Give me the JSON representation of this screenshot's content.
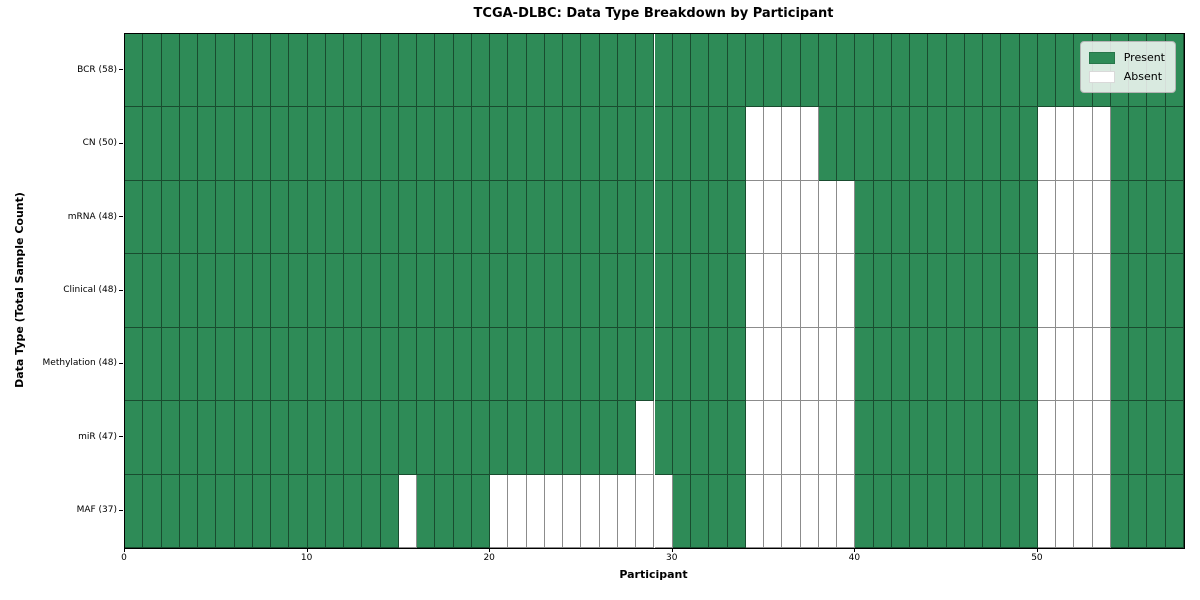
{
  "figure": {
    "title": "TCGA-DLBC: Data Type Breakdown by Participant",
    "xlabel": "Participant",
    "ylabel": "Data Type (Total Sample Count)"
  },
  "legend": {
    "items": [
      {
        "label": "Present",
        "color": "#2e8b57"
      },
      {
        "label": "Absent",
        "color": "#ffffff"
      }
    ]
  },
  "chart_data": {
    "type": "heatmap",
    "title": "TCGA-DLBC: Data Type Breakdown by Participant",
    "xlabel": "Participant",
    "ylabel": "Data Type (Total Sample Count)",
    "x_range": [
      0,
      58
    ],
    "x_ticks": [
      0,
      10,
      20,
      30,
      40,
      50
    ],
    "n_participants": 58,
    "grid": true,
    "legend_position": "upper right",
    "colors": {
      "present": "#2e8b57",
      "absent": "#ffffff",
      "gridline": "rgba(0,0,0,0.45)"
    },
    "rows": [
      {
        "label": "BCR (58)",
        "data_type": "BCR",
        "present_count": 58,
        "absent_participants": []
      },
      {
        "label": "CN (50)",
        "data_type": "CN",
        "present_count": 50,
        "absent_participants": [
          34,
          35,
          36,
          37,
          50,
          51,
          52,
          53
        ]
      },
      {
        "label": "mRNA (48)",
        "data_type": "mRNA",
        "present_count": 48,
        "absent_participants": [
          34,
          35,
          36,
          37,
          38,
          39,
          50,
          51,
          52,
          53
        ]
      },
      {
        "label": "Clinical (48)",
        "data_type": "Clinical",
        "present_count": 48,
        "absent_participants": [
          34,
          35,
          36,
          37,
          38,
          39,
          50,
          51,
          52,
          53
        ]
      },
      {
        "label": "Methylation (48)",
        "data_type": "Methylation",
        "present_count": 48,
        "absent_participants": [
          34,
          35,
          36,
          37,
          38,
          39,
          50,
          51,
          52,
          53
        ]
      },
      {
        "label": "miR (47)",
        "data_type": "miR",
        "present_count": 47,
        "absent_participants": [
          28,
          34,
          35,
          36,
          37,
          38,
          39,
          50,
          51,
          52,
          53
        ]
      },
      {
        "label": "MAF (37)",
        "data_type": "MAF",
        "present_count": 37,
        "absent_participants": [
          15,
          20,
          21,
          22,
          23,
          24,
          25,
          26,
          27,
          28,
          29,
          34,
          35,
          36,
          37,
          38,
          39,
          50,
          51,
          52,
          53
        ]
      }
    ]
  }
}
